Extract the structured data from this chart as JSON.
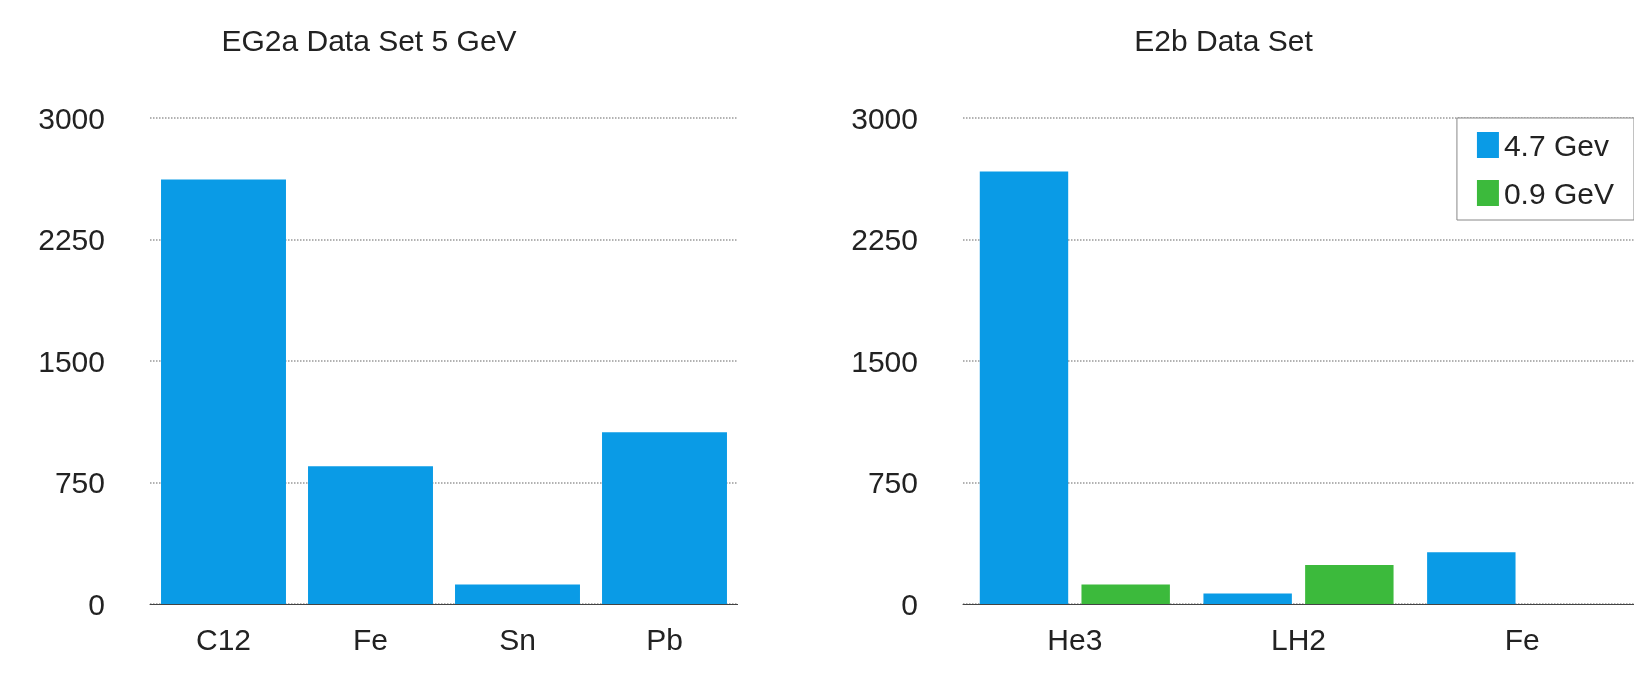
{
  "chart_data": [
    {
      "type": "bar",
      "title": "EG2a Data Set 5 GeV",
      "categories": [
        "C12",
        "Fe",
        "Sn",
        "Pb"
      ],
      "values": [
        2620,
        850,
        120,
        1060
      ],
      "color": "#0a9be6",
      "ylim": [
        0,
        3000
      ],
      "yticks": [
        0,
        750,
        1500,
        2250,
        3000
      ],
      "grid": "y",
      "legend": false
    },
    {
      "type": "bar",
      "title": "E2b Data Set",
      "categories": [
        "He3",
        "LH2",
        "Fe"
      ],
      "series": [
        {
          "name": "4.7 Gev",
          "color": "#0a9be6",
          "values": [
            2670,
            65,
            320
          ]
        },
        {
          "name": "0.9 GeV",
          "color": "#3cba3c",
          "values": [
            120,
            240,
            null
          ]
        }
      ],
      "ylim": [
        0,
        3000
      ],
      "yticks": [
        0,
        750,
        1500,
        2250,
        3000
      ],
      "grid": "y",
      "legend": "top right"
    }
  ]
}
